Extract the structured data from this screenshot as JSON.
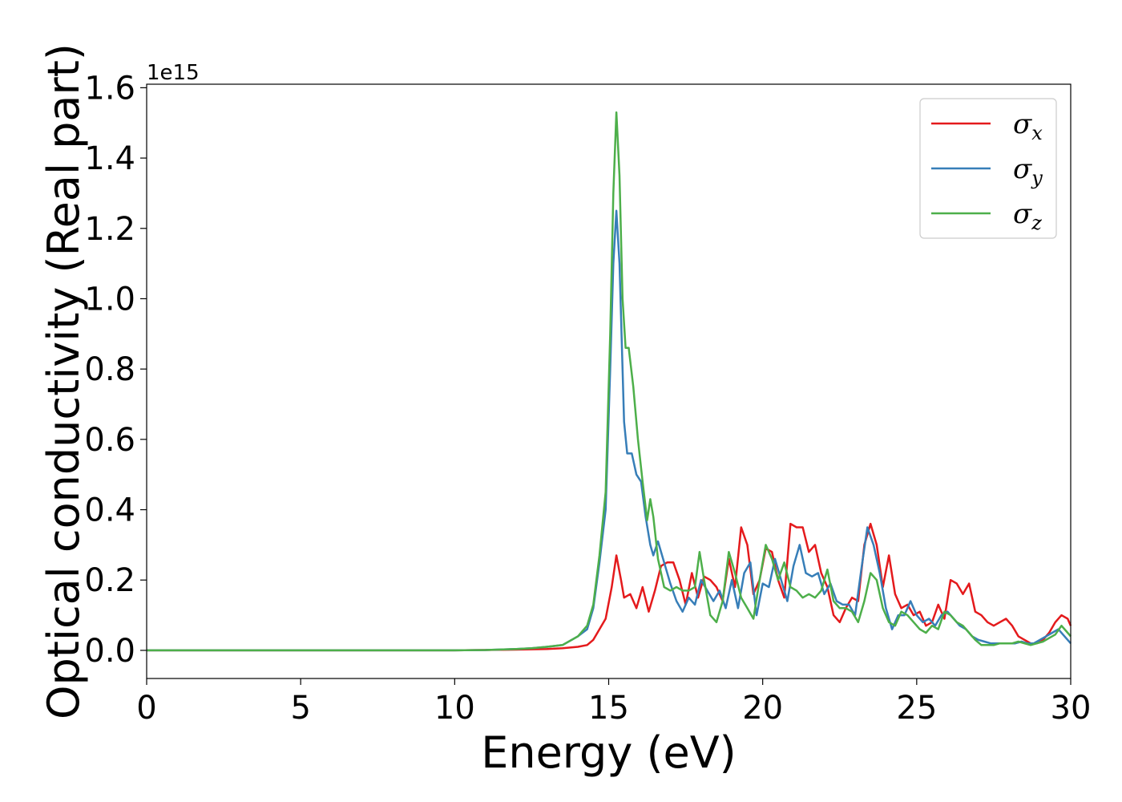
{
  "chart_data": {
    "type": "line",
    "xlabel": "Energy (eV)",
    "ylabel": "Optical conductivity (Real part)",
    "y_offset_label": "1e15",
    "xlim": [
      0,
      30
    ],
    "ylim": [
      -0.08,
      1.61
    ],
    "x_ticks": [
      0,
      5,
      10,
      15,
      20,
      25,
      30
    ],
    "x_tick_labels": [
      "0",
      "5",
      "10",
      "15",
      "20",
      "25",
      "30"
    ],
    "y_ticks": [
      0.0,
      0.2,
      0.4,
      0.6,
      0.8,
      1.0,
      1.2,
      1.4,
      1.6
    ],
    "y_tick_labels": [
      "0.0",
      "0.2",
      "0.4",
      "0.6",
      "0.8",
      "1.0",
      "1.2",
      "1.4",
      "1.6"
    ],
    "grid": false,
    "legend_position": "top-right",
    "series": [
      {
        "name": "σx",
        "legend_symbol": "σ",
        "legend_subscript": "x",
        "color": "#e41a1c",
        "points": [
          [
            0,
            0
          ],
          [
            10,
            0
          ],
          [
            12,
            0.002
          ],
          [
            13,
            0.004
          ],
          [
            13.5,
            0.006
          ],
          [
            14,
            0.01
          ],
          [
            14.3,
            0.015
          ],
          [
            14.5,
            0.03
          ],
          [
            14.7,
            0.06
          ],
          [
            14.9,
            0.09
          ],
          [
            15.1,
            0.18
          ],
          [
            15.25,
            0.27
          ],
          [
            15.4,
            0.2
          ],
          [
            15.5,
            0.15
          ],
          [
            15.7,
            0.16
          ],
          [
            15.9,
            0.12
          ],
          [
            16.1,
            0.18
          ],
          [
            16.3,
            0.11
          ],
          [
            16.5,
            0.17
          ],
          [
            16.7,
            0.24
          ],
          [
            16.9,
            0.25
          ],
          [
            17.1,
            0.25
          ],
          [
            17.3,
            0.2
          ],
          [
            17.5,
            0.13
          ],
          [
            17.7,
            0.22
          ],
          [
            17.9,
            0.15
          ],
          [
            18.1,
            0.21
          ],
          [
            18.3,
            0.2
          ],
          [
            18.5,
            0.18
          ],
          [
            18.7,
            0.14
          ],
          [
            18.9,
            0.26
          ],
          [
            19.1,
            0.18
          ],
          [
            19.3,
            0.35
          ],
          [
            19.5,
            0.3
          ],
          [
            19.7,
            0.16
          ],
          [
            19.9,
            0.2
          ],
          [
            20.1,
            0.29
          ],
          [
            20.3,
            0.28
          ],
          [
            20.5,
            0.2
          ],
          [
            20.7,
            0.15
          ],
          [
            20.9,
            0.36
          ],
          [
            21.1,
            0.35
          ],
          [
            21.3,
            0.35
          ],
          [
            21.5,
            0.28
          ],
          [
            21.7,
            0.3
          ],
          [
            21.9,
            0.22
          ],
          [
            22.1,
            0.18
          ],
          [
            22.3,
            0.1
          ],
          [
            22.5,
            0.08
          ],
          [
            22.7,
            0.12
          ],
          [
            22.9,
            0.15
          ],
          [
            23.1,
            0.14
          ],
          [
            23.3,
            0.3
          ],
          [
            23.5,
            0.36
          ],
          [
            23.7,
            0.3
          ],
          [
            23.9,
            0.18
          ],
          [
            24.1,
            0.27
          ],
          [
            24.3,
            0.16
          ],
          [
            24.5,
            0.12
          ],
          [
            24.7,
            0.13
          ],
          [
            24.9,
            0.1
          ],
          [
            25.1,
            0.11
          ],
          [
            25.3,
            0.07
          ],
          [
            25.5,
            0.08
          ],
          [
            25.7,
            0.13
          ],
          [
            25.9,
            0.09
          ],
          [
            26.1,
            0.2
          ],
          [
            26.3,
            0.19
          ],
          [
            26.5,
            0.16
          ],
          [
            26.7,
            0.19
          ],
          [
            26.9,
            0.11
          ],
          [
            27.1,
            0.1
          ],
          [
            27.3,
            0.08
          ],
          [
            27.5,
            0.07
          ],
          [
            27.7,
            0.08
          ],
          [
            27.9,
            0.09
          ],
          [
            28.1,
            0.07
          ],
          [
            28.3,
            0.04
          ],
          [
            28.5,
            0.03
          ],
          [
            28.7,
            0.02
          ],
          [
            28.9,
            0.02
          ],
          [
            29.1,
            0.03
          ],
          [
            29.3,
            0.05
          ],
          [
            29.5,
            0.08
          ],
          [
            29.7,
            0.1
          ],
          [
            29.9,
            0.09
          ],
          [
            30,
            0.07
          ]
        ]
      },
      {
        "name": "σy",
        "legend_symbol": "σ",
        "legend_subscript": "y",
        "color": "#377eb8",
        "points": [
          [
            0,
            0
          ],
          [
            10,
            0
          ],
          [
            11,
            0.001
          ],
          [
            12,
            0.004
          ],
          [
            12.5,
            0.006
          ],
          [
            13,
            0.01
          ],
          [
            13.5,
            0.015
          ],
          [
            14,
            0.04
          ],
          [
            14.3,
            0.06
          ],
          [
            14.5,
            0.12
          ],
          [
            14.7,
            0.25
          ],
          [
            14.9,
            0.4
          ],
          [
            15.05,
            0.8
          ],
          [
            15.15,
            1.1
          ],
          [
            15.25,
            1.25
          ],
          [
            15.35,
            1.1
          ],
          [
            15.5,
            0.65
          ],
          [
            15.6,
            0.56
          ],
          [
            15.75,
            0.56
          ],
          [
            15.9,
            0.5
          ],
          [
            16.05,
            0.48
          ],
          [
            16.2,
            0.38
          ],
          [
            16.35,
            0.3
          ],
          [
            16.45,
            0.27
          ],
          [
            16.6,
            0.31
          ],
          [
            16.8,
            0.25
          ],
          [
            17,
            0.19
          ],
          [
            17.2,
            0.14
          ],
          [
            17.4,
            0.11
          ],
          [
            17.6,
            0.15
          ],
          [
            17.8,
            0.13
          ],
          [
            18,
            0.2
          ],
          [
            18.2,
            0.17
          ],
          [
            18.4,
            0.14
          ],
          [
            18.6,
            0.17
          ],
          [
            18.8,
            0.12
          ],
          [
            19,
            0.2
          ],
          [
            19.2,
            0.12
          ],
          [
            19.4,
            0.22
          ],
          [
            19.6,
            0.25
          ],
          [
            19.8,
            0.1
          ],
          [
            20,
            0.19
          ],
          [
            20.2,
            0.18
          ],
          [
            20.4,
            0.26
          ],
          [
            20.6,
            0.2
          ],
          [
            20.8,
            0.14
          ],
          [
            21,
            0.24
          ],
          [
            21.2,
            0.3
          ],
          [
            21.4,
            0.22
          ],
          [
            21.6,
            0.21
          ],
          [
            21.8,
            0.22
          ],
          [
            22,
            0.16
          ],
          [
            22.2,
            0.19
          ],
          [
            22.4,
            0.14
          ],
          [
            22.6,
            0.13
          ],
          [
            22.8,
            0.13
          ],
          [
            23,
            0.1
          ],
          [
            23.2,
            0.23
          ],
          [
            23.4,
            0.35
          ],
          [
            23.6,
            0.3
          ],
          [
            23.8,
            0.22
          ],
          [
            24,
            0.12
          ],
          [
            24.2,
            0.06
          ],
          [
            24.4,
            0.1
          ],
          [
            24.6,
            0.1
          ],
          [
            24.8,
            0.14
          ],
          [
            25,
            0.1
          ],
          [
            25.2,
            0.08
          ],
          [
            25.4,
            0.09
          ],
          [
            25.6,
            0.07
          ],
          [
            25.8,
            0.1
          ],
          [
            26,
            0.11
          ],
          [
            26.2,
            0.09
          ],
          [
            26.4,
            0.07
          ],
          [
            26.6,
            0.06
          ],
          [
            26.8,
            0.04
          ],
          [
            27,
            0.03
          ],
          [
            27.2,
            0.025
          ],
          [
            27.4,
            0.02
          ],
          [
            27.6,
            0.02
          ],
          [
            27.8,
            0.02
          ],
          [
            28,
            0.02
          ],
          [
            28.2,
            0.02
          ],
          [
            28.4,
            0.025
          ],
          [
            28.6,
            0.02
          ],
          [
            28.8,
            0.02
          ],
          [
            29,
            0.03
          ],
          [
            29.2,
            0.04
          ],
          [
            29.4,
            0.05
          ],
          [
            29.6,
            0.06
          ],
          [
            29.8,
            0.04
          ],
          [
            30,
            0.02
          ]
        ]
      },
      {
        "name": "σz",
        "legend_symbol": "σ",
        "legend_subscript": "z",
        "color": "#4daf4a",
        "points": [
          [
            0,
            0
          ],
          [
            10,
            0
          ],
          [
            11,
            0.001
          ],
          [
            12,
            0.004
          ],
          [
            12.5,
            0.006
          ],
          [
            13,
            0.01
          ],
          [
            13.5,
            0.015
          ],
          [
            14,
            0.04
          ],
          [
            14.3,
            0.07
          ],
          [
            14.5,
            0.13
          ],
          [
            14.7,
            0.27
          ],
          [
            14.9,
            0.45
          ],
          [
            15.05,
            0.9
          ],
          [
            15.15,
            1.3
          ],
          [
            15.25,
            1.53
          ],
          [
            15.35,
            1.35
          ],
          [
            15.45,
            1.0
          ],
          [
            15.55,
            0.86
          ],
          [
            15.65,
            0.86
          ],
          [
            15.8,
            0.75
          ],
          [
            15.95,
            0.6
          ],
          [
            16.1,
            0.48
          ],
          [
            16.25,
            0.37
          ],
          [
            16.35,
            0.43
          ],
          [
            16.45,
            0.38
          ],
          [
            16.6,
            0.26
          ],
          [
            16.8,
            0.18
          ],
          [
            17,
            0.17
          ],
          [
            17.2,
            0.18
          ],
          [
            17.4,
            0.17
          ],
          [
            17.6,
            0.17
          ],
          [
            17.8,
            0.18
          ],
          [
            17.95,
            0.28
          ],
          [
            18.1,
            0.2
          ],
          [
            18.3,
            0.1
          ],
          [
            18.5,
            0.08
          ],
          [
            18.7,
            0.14
          ],
          [
            18.9,
            0.28
          ],
          [
            19.1,
            0.22
          ],
          [
            19.3,
            0.15
          ],
          [
            19.5,
            0.12
          ],
          [
            19.7,
            0.09
          ],
          [
            19.9,
            0.2
          ],
          [
            20.1,
            0.3
          ],
          [
            20.3,
            0.26
          ],
          [
            20.5,
            0.2
          ],
          [
            20.7,
            0.25
          ],
          [
            20.9,
            0.18
          ],
          [
            21.1,
            0.17
          ],
          [
            21.3,
            0.15
          ],
          [
            21.5,
            0.16
          ],
          [
            21.7,
            0.15
          ],
          [
            21.9,
            0.17
          ],
          [
            22.1,
            0.23
          ],
          [
            22.3,
            0.14
          ],
          [
            22.5,
            0.12
          ],
          [
            22.7,
            0.12
          ],
          [
            22.9,
            0.11
          ],
          [
            23.1,
            0.08
          ],
          [
            23.3,
            0.14
          ],
          [
            23.5,
            0.22
          ],
          [
            23.7,
            0.2
          ],
          [
            23.9,
            0.12
          ],
          [
            24.1,
            0.08
          ],
          [
            24.3,
            0.07
          ],
          [
            24.5,
            0.11
          ],
          [
            24.7,
            0.1
          ],
          [
            24.9,
            0.08
          ],
          [
            25.1,
            0.06
          ],
          [
            25.3,
            0.05
          ],
          [
            25.5,
            0.07
          ],
          [
            25.7,
            0.06
          ],
          [
            25.9,
            0.11
          ],
          [
            26.1,
            0.1
          ],
          [
            26.3,
            0.08
          ],
          [
            26.5,
            0.07
          ],
          [
            26.7,
            0.05
          ],
          [
            26.9,
            0.03
          ],
          [
            27.1,
            0.015
          ],
          [
            27.3,
            0.015
          ],
          [
            27.5,
            0.015
          ],
          [
            27.7,
            0.02
          ],
          [
            27.9,
            0.02
          ],
          [
            28.1,
            0.02
          ],
          [
            28.3,
            0.025
          ],
          [
            28.5,
            0.02
          ],
          [
            28.7,
            0.015
          ],
          [
            28.9,
            0.02
          ],
          [
            29.1,
            0.025
          ],
          [
            29.3,
            0.035
          ],
          [
            29.5,
            0.045
          ],
          [
            29.7,
            0.07
          ],
          [
            29.9,
            0.05
          ],
          [
            30,
            0.04
          ]
        ]
      }
    ]
  }
}
